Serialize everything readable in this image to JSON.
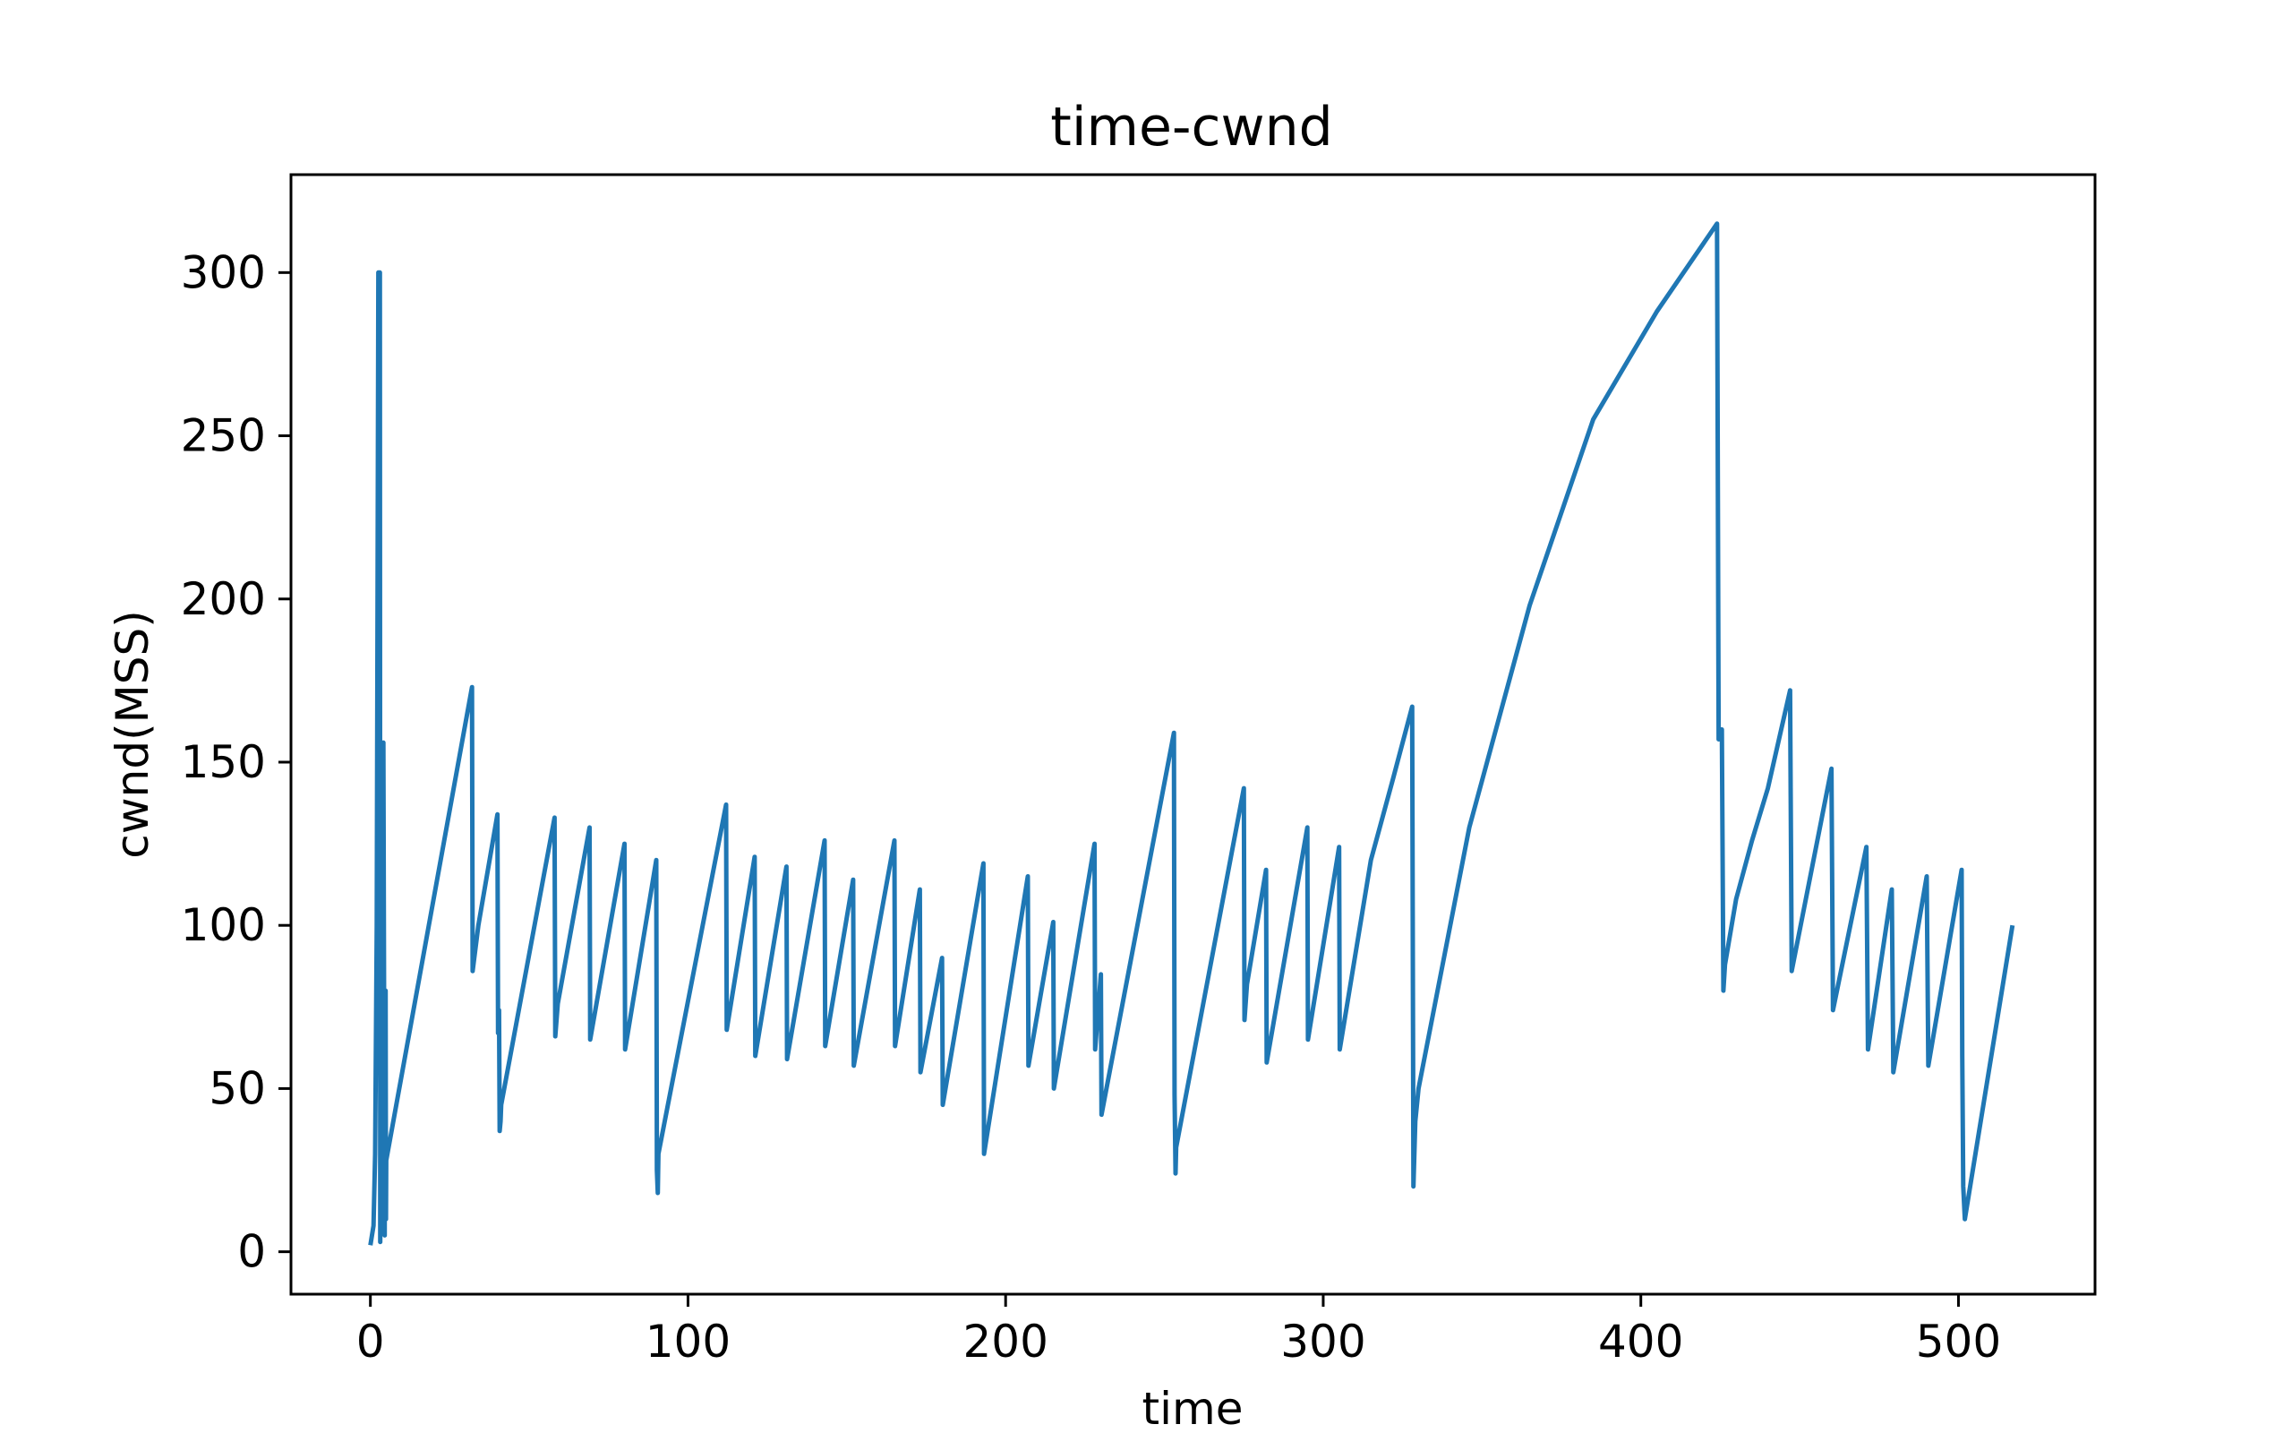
{
  "chart_data": {
    "type": "line",
    "title": "time-cwnd",
    "xlabel": "time",
    "ylabel": "cwnd(MSS)",
    "xlim": [
      -25,
      543
    ],
    "ylim": [
      -13,
      330
    ],
    "xticks": [
      0,
      100,
      200,
      300,
      400,
      500
    ],
    "yticks": [
      0,
      50,
      100,
      150,
      200,
      250,
      300
    ],
    "grid": false,
    "color": "#1f77b4",
    "series": [
      {
        "x": [
          0,
          1,
          1.5,
          2,
          2.5,
          3,
          3.1,
          3.5,
          3.6,
          4,
          4.1,
          4.5,
          4.6,
          4.8,
          4.9,
          5,
          32,
          32.2,
          34,
          40,
          40.2,
          40.5,
          40.7,
          41,
          41.2,
          58,
          58.2,
          59,
          69,
          69.2,
          80,
          80.2,
          90,
          90.2,
          90.5,
          90.7,
          112,
          112.2,
          121,
          121.2,
          131,
          131.2,
          143,
          143.2,
          152,
          152.2,
          165,
          165.2,
          173,
          173.2,
          180,
          180.2,
          193,
          193.2,
          207,
          207.2,
          215,
          215.2,
          228,
          228.2,
          230,
          230.2,
          253,
          253.2,
          253.5,
          253.7,
          275,
          275.2,
          276,
          282,
          282.2,
          295,
          295.2,
          305,
          305.2,
          315,
          322,
          328,
          328.4,
          329,
          330,
          346,
          365,
          385,
          405,
          424,
          424.5,
          425,
          425.5,
          426,
          426.5,
          430,
          435,
          440,
          447,
          447.5,
          460,
          460.5,
          471,
          471.5,
          479,
          479.5,
          490,
          490.5,
          501,
          501.2,
          501.5,
          502,
          517
        ],
        "y": [
          2,
          8,
          30,
          100,
          300,
          300,
          3,
          80,
          156,
          30,
          156,
          5,
          80,
          80,
          10,
          28,
          173,
          86,
          100,
          134,
          67,
          74,
          37,
          40,
          45,
          133,
          66,
          76,
          130,
          65,
          125,
          62,
          120,
          25,
          18,
          30,
          137,
          68,
          121,
          60,
          118,
          59,
          126,
          63,
          114,
          57,
          126,
          63,
          111,
          55,
          90,
          45,
          119,
          30,
          115,
          57,
          101,
          50,
          125,
          62,
          85,
          42,
          159,
          48,
          24,
          32,
          142,
          71,
          82,
          117,
          58,
          130,
          65,
          124,
          62,
          120,
          145,
          167,
          20,
          40,
          50,
          130,
          198,
          255,
          288,
          315,
          157,
          160,
          160,
          80,
          88,
          108,
          126,
          142,
          172,
          86,
          148,
          74,
          124,
          62,
          111,
          55,
          115,
          57,
          117,
          60,
          20,
          10,
          100
        ]
      }
    ]
  }
}
